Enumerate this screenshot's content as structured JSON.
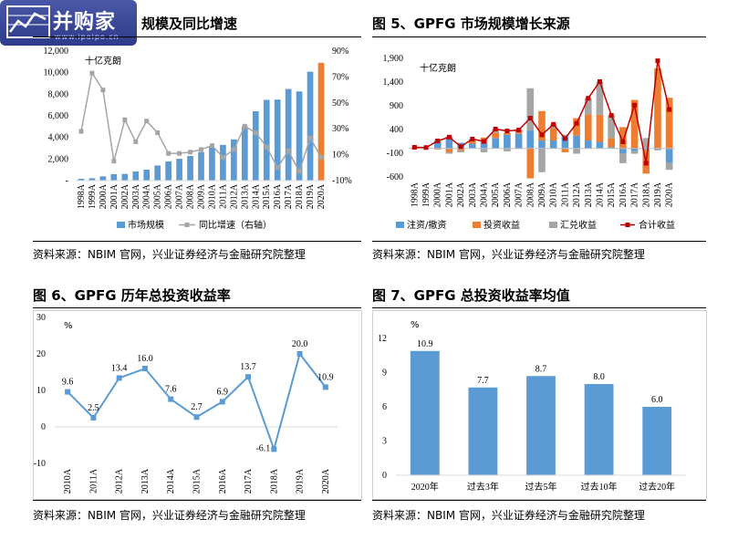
{
  "watermark": {
    "name": "并购家",
    "url": "www.ipoipo.cn"
  },
  "panels": {
    "fig4": {
      "title": "规模及同比增速",
      "source": "资料来源：NBIM 官网，兴业证券经济与金融研究院整理",
      "unit": "十亿克朗"
    },
    "fig5": {
      "title": "图 5、GPFG 市场规模增长来源",
      "source": "资料来源：NBIM 官网，兴业证券经济与金融研究院整理",
      "unit": "十亿克朗"
    },
    "fig6": {
      "title": "图 6、GPFG 历年总投资收益率",
      "source": "资料来源：NBIM 官网，兴业证券经济与金融研究院整理",
      "unit": "%"
    },
    "fig7": {
      "title": "图 7、GPFG 总投资收益率均值",
      "source": "资料来源：NBIM 官网，兴业证券经济与金融研究院整理",
      "unit": "%"
    }
  },
  "colors": {
    "blue": "#5b9bd5",
    "orange": "#ed7d31",
    "gray": "#a5a5a5",
    "red": "#c00000"
  },
  "chart_data": [
    {
      "id": "fig4",
      "type": "bar",
      "categories": [
        "1998A",
        "1999A",
        "2000A",
        "2001A",
        "2002A",
        "2003A",
        "2004A",
        "2005A",
        "2006A",
        "2007A",
        "2008A",
        "2009A",
        "2010A",
        "2011A",
        "2012A",
        "2013A",
        "2014A",
        "2015A",
        "2016A",
        "2017A",
        "2018A",
        "2019A",
        "2020A"
      ],
      "series": [
        {
          "name": "市场规模",
          "type": "bar",
          "axis": "left",
          "values": [
            170,
            220,
            390,
            600,
            620,
            850,
            1020,
            1400,
            1780,
            2020,
            2280,
            2640,
            3080,
            3310,
            3820,
            5030,
            6430,
            7480,
            7510,
            8490,
            8260,
            10090,
            10910
          ]
        },
        {
          "name": "同比增速（右轴）",
          "type": "line",
          "axis": "right",
          "values": [
            28,
            73,
            60,
            5,
            37,
            20,
            36,
            27,
            11,
            11,
            12,
            14,
            17,
            8,
            14,
            32,
            27,
            16,
            0,
            13,
            -3,
            23,
            8
          ]
        }
      ],
      "ylim_left": [
        0,
        12000
      ],
      "yticks_left": [
        "-",
        "2,000",
        "4,000",
        "6,000",
        "8,000",
        "10,000",
        "12,000"
      ],
      "ylim_right": [
        -10,
        90
      ],
      "yticks_right": [
        "-10%",
        "10%",
        "30%",
        "50%",
        "70%",
        "90%"
      ],
      "legend": [
        "市场规模",
        "同比增速（右轴）"
      ]
    },
    {
      "id": "fig5",
      "type": "bar",
      "categories": [
        "1998A",
        "1999A",
        "2000A",
        "2001A",
        "2002A",
        "2003A",
        "2004A",
        "2005A",
        "2006A",
        "2007A",
        "2008A",
        "2009A",
        "2010A",
        "2011A",
        "2012A",
        "2013A",
        "2014A",
        "2015A",
        "2016A",
        "2017A",
        "2018A",
        "2019A",
        "2020A"
      ],
      "series": [
        {
          "name": "注资/撤资",
          "values": [
            20,
            20,
            150,
            250,
            120,
            100,
            140,
            220,
            290,
            310,
            380,
            170,
            170,
            260,
            270,
            170,
            140,
            30,
            -100,
            -50,
            -30,
            -20,
            -300
          ]
        },
        {
          "name": "投资收益",
          "values": [
            5,
            0,
            -20,
            -80,
            -40,
            60,
            90,
            110,
            40,
            90,
            -630,
            620,
            260,
            -80,
            370,
            550,
            570,
            190,
            450,
            1025,
            -500,
            1690,
            1070
          ]
        },
        {
          "name": "汇兑收益",
          "values": [
            0,
            0,
            30,
            -30,
            -40,
            40,
            -80,
            80,
            -60,
            -10,
            890,
            -500,
            80,
            30,
            -110,
            340,
            700,
            480,
            -210,
            -60,
            220,
            -20,
            -150
          ]
        },
        {
          "name": "合计收益",
          "type": "line",
          "values": [
            25,
            20,
            160,
            240,
            40,
            200,
            150,
            410,
            370,
            390,
            640,
            290,
            510,
            210,
            530,
            1060,
            1410,
            700,
            140,
            915,
            -310,
            1850,
            820
          ]
        }
      ],
      "ylim": [
        -600,
        1900
      ],
      "yticks": [
        "-600",
        "-100",
        "400",
        "900",
        "1,400",
        "1,900"
      ],
      "legend": [
        "注资/撤资",
        "投资收益",
        "汇兑收益",
        "合计收益"
      ]
    },
    {
      "id": "fig6",
      "type": "line",
      "categories": [
        "2010A",
        "2011A",
        "2012A",
        "2013A",
        "2014A",
        "2015A",
        "2016A",
        "2017A",
        "2018A",
        "2019A",
        "2020A"
      ],
      "values": [
        9.6,
        2.5,
        13.4,
        16.0,
        7.6,
        2.7,
        6.9,
        13.7,
        -6.1,
        20.0,
        10.9
      ],
      "labels": [
        "9.6",
        "2.5",
        "13.4",
        "16.0",
        "7.6",
        "2.7",
        "6.9",
        "13.7",
        "-6.1",
        "20.0",
        "10.9"
      ],
      "ylim": [
        -10,
        30
      ],
      "yticks": [
        "-10",
        "0",
        "10",
        "20",
        "30"
      ]
    },
    {
      "id": "fig7",
      "type": "bar",
      "categories": [
        "2020年",
        "过去3年",
        "过去5年",
        "过去10年",
        "过去20年"
      ],
      "values": [
        10.9,
        7.7,
        8.7,
        8.0,
        6.0
      ],
      "labels": [
        "10.9",
        "7.7",
        "8.7",
        "8.0",
        "6.0"
      ],
      "ylim": [
        0,
        12
      ],
      "yticks": [
        "0",
        "3",
        "6",
        "9",
        "12"
      ]
    }
  ]
}
